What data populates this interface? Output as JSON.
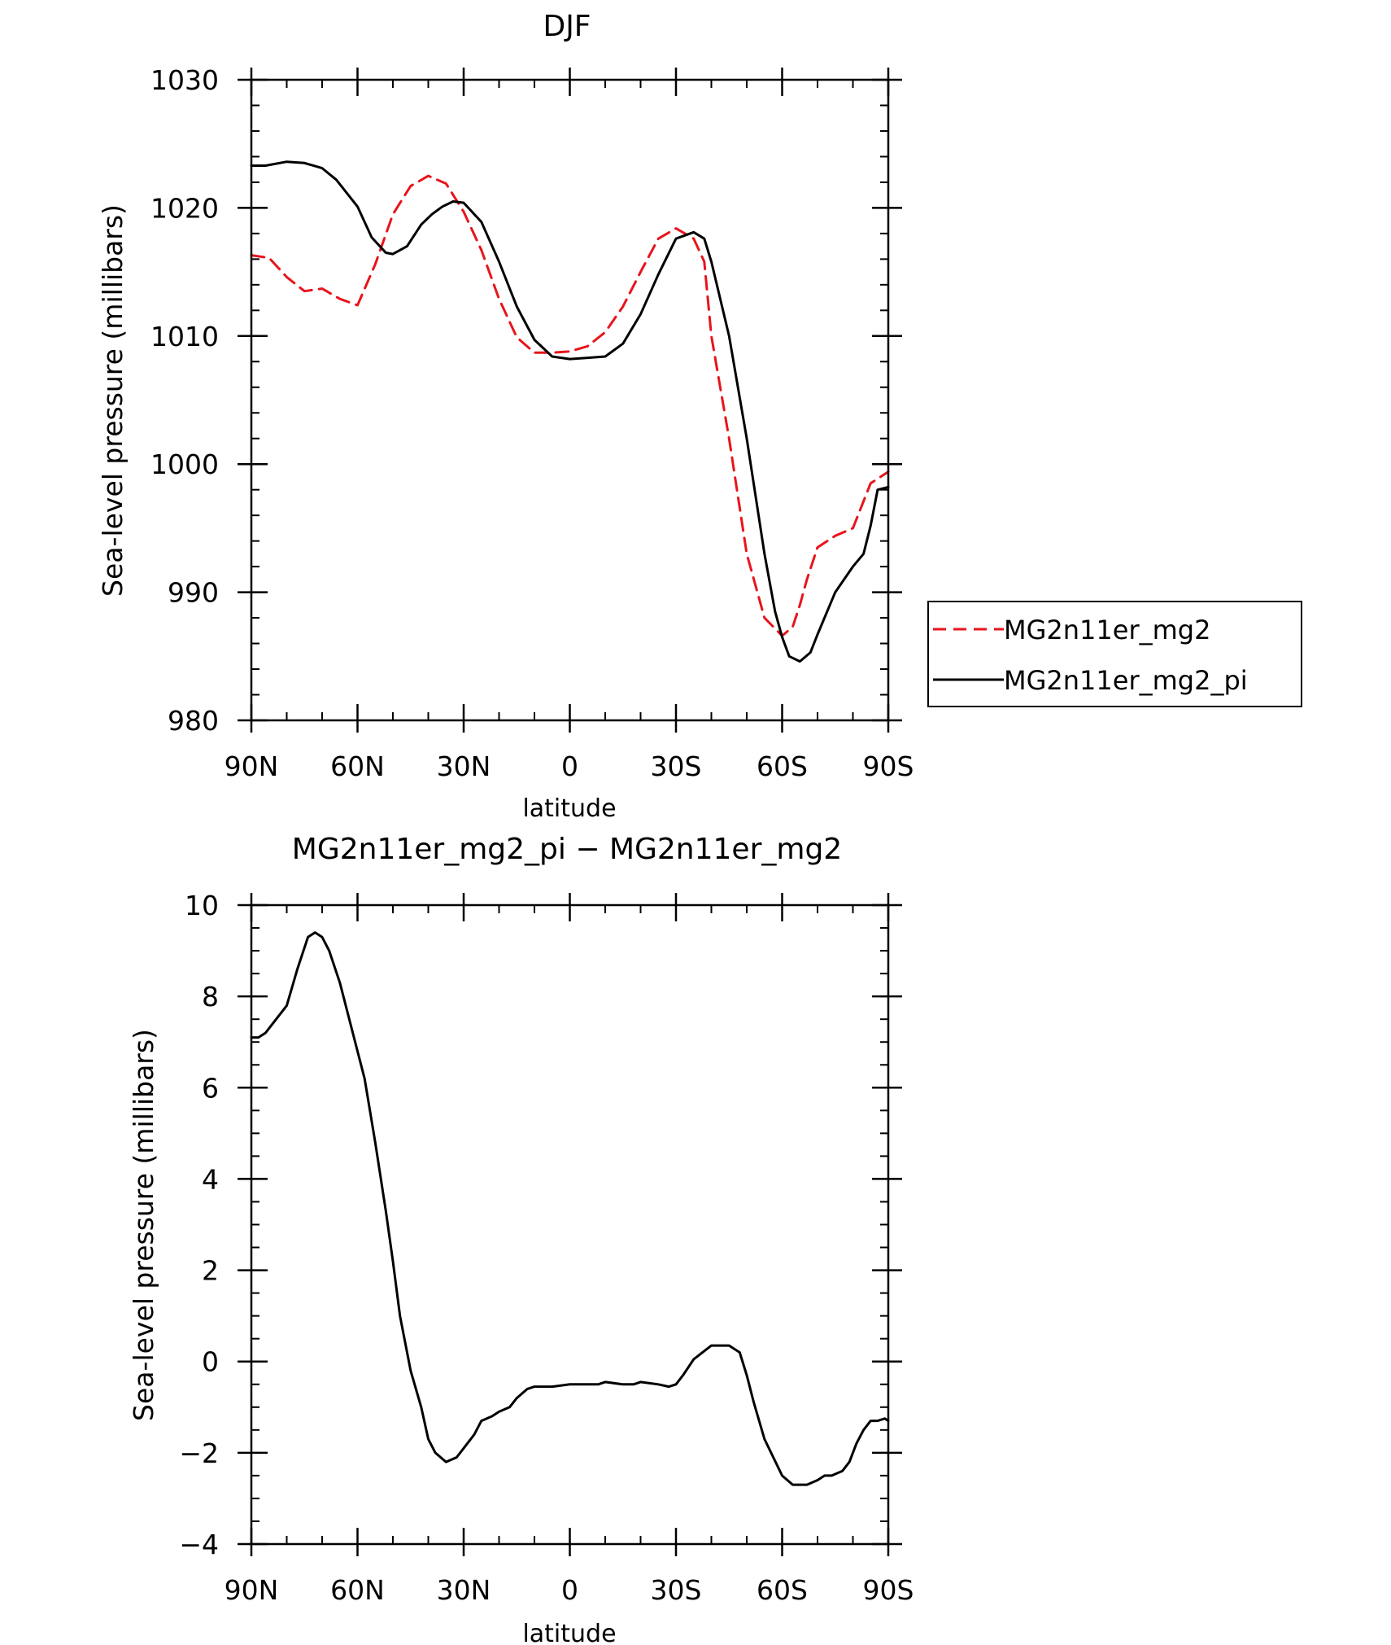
{
  "chart_data": [
    {
      "type": "line",
      "title": "DJF",
      "xlabel": "latitude",
      "ylabel": "Sea-level pressure (millibars)",
      "xlim": [
        90,
        -90
      ],
      "ylim": [
        980,
        1030
      ],
      "x_ticks": [
        {
          "value": 90,
          "label": "90N"
        },
        {
          "value": 60,
          "label": "60N"
        },
        {
          "value": 30,
          "label": "30N"
        },
        {
          "value": 0,
          "label": "0"
        },
        {
          "value": -30,
          "label": "30S"
        },
        {
          "value": -60,
          "label": "60S"
        },
        {
          "value": -90,
          "label": "90S"
        }
      ],
      "y_ticks": [
        {
          "value": 980,
          "label": "980"
        },
        {
          "value": 990,
          "label": "990"
        },
        {
          "value": 1000,
          "label": "1000"
        },
        {
          "value": 1010,
          "label": "1010"
        },
        {
          "value": 1020,
          "label": "1020"
        },
        {
          "value": 1030,
          "label": "1030"
        }
      ],
      "legend": "right",
      "series": [
        {
          "name": "MG2n11er_mg2",
          "color": "#e8141c",
          "dash": "dashed",
          "x": [
            90,
            85,
            80,
            75,
            70,
            65,
            60,
            55,
            50,
            45,
            40,
            35,
            30,
            25,
            20,
            15,
            10,
            5,
            0,
            -5,
            -10,
            -15,
            -20,
            -25,
            -30,
            -35,
            -38,
            -40,
            -45,
            -50,
            -55,
            -60,
            -63,
            -65,
            -67,
            -70,
            -75,
            -80,
            -85,
            -90
          ],
          "y": [
            1016.3,
            1016.1,
            1014.6,
            1013.5,
            1013.7,
            1012.9,
            1012.4,
            1015.6,
            1019.5,
            1021.7,
            1022.5,
            1021.9,
            1019.7,
            1016.7,
            1012.9,
            1009.9,
            1008.7,
            1008.7,
            1008.8,
            1009.2,
            1010.3,
            1012.3,
            1015.0,
            1017.6,
            1018.4,
            1017.6,
            1015.8,
            1010.0,
            1002.0,
            993.0,
            988.0,
            986.6,
            987.3,
            989.0,
            991.0,
            993.5,
            994.4,
            995.0,
            998.5,
            999.4
          ]
        },
        {
          "name": "MG2n11er_mg2_pi",
          "color": "#000000",
          "dash": "solid",
          "x": [
            90,
            86,
            80,
            75,
            70,
            66,
            60,
            56,
            52,
            50,
            46,
            42,
            39,
            36,
            33,
            30,
            25,
            20,
            15,
            10,
            5,
            0,
            -5,
            -10,
            -15,
            -20,
            -25,
            -30,
            -35,
            -38,
            -40,
            -45,
            -50,
            -55,
            -58,
            -60,
            -62,
            -65,
            -68,
            -70,
            -75,
            -80,
            -83,
            -85,
            -87,
            -90
          ],
          "y": [
            1023.3,
            1023.3,
            1023.6,
            1023.5,
            1023.1,
            1022.2,
            1020.1,
            1017.7,
            1016.5,
            1016.4,
            1017.0,
            1018.7,
            1019.5,
            1020.1,
            1020.5,
            1020.4,
            1018.9,
            1015.8,
            1012.3,
            1009.7,
            1008.4,
            1008.2,
            1008.3,
            1008.4,
            1009.4,
            1011.7,
            1014.8,
            1017.6,
            1018.1,
            1017.6,
            1015.8,
            1010.0,
            1002.0,
            993.0,
            988.5,
            986.5,
            985.0,
            984.6,
            985.3,
            986.7,
            990.0,
            992.0,
            993.0,
            995.2,
            998.0,
            998.2
          ]
        }
      ]
    },
    {
      "type": "line",
      "title": "MG2n11er_mg2_pi − MG2n11er_mg2",
      "xlabel": "latitude",
      "ylabel": "Sea-level pressure (millibars)",
      "xlim": [
        90,
        -90
      ],
      "ylim": [
        -4,
        10
      ],
      "x_ticks": [
        {
          "value": 90,
          "label": "90N"
        },
        {
          "value": 60,
          "label": "60N"
        },
        {
          "value": 30,
          "label": "30N"
        },
        {
          "value": 0,
          "label": "0"
        },
        {
          "value": -30,
          "label": "30S"
        },
        {
          "value": -60,
          "label": "60S"
        },
        {
          "value": -90,
          "label": "90S"
        }
      ],
      "y_ticks": [
        {
          "value": -4,
          "label": "−4"
        },
        {
          "value": -2,
          "label": "−2"
        },
        {
          "value": 0,
          "label": "0"
        },
        {
          "value": 2,
          "label": "2"
        },
        {
          "value": 4,
          "label": "4"
        },
        {
          "value": 6,
          "label": "6"
        },
        {
          "value": 8,
          "label": "8"
        },
        {
          "value": 10,
          "label": "10"
        }
      ],
      "series": [
        {
          "color": "#000000",
          "dash": "solid",
          "x": [
            90,
            88,
            86,
            84,
            80,
            77,
            74,
            72,
            70,
            68,
            65,
            62,
            58,
            55,
            52,
            50,
            48,
            45,
            42,
            40,
            38,
            35,
            32,
            30,
            27,
            25,
            22,
            20,
            17,
            15,
            12,
            10,
            5,
            0,
            -5,
            -8,
            -10,
            -15,
            -18,
            -20,
            -25,
            -28,
            -30,
            -32,
            -35,
            -40,
            -45,
            -48,
            -50,
            -52,
            -55,
            -60,
            -63,
            -67,
            -70,
            -72,
            -74,
            -77,
            -79,
            -81,
            -83,
            -85,
            -87,
            -89,
            -90
          ],
          "y": [
            7.1,
            7.1,
            7.2,
            7.4,
            7.8,
            8.6,
            9.3,
            9.4,
            9.3,
            9.0,
            8.3,
            7.4,
            6.2,
            4.8,
            3.3,
            2.2,
            1.0,
            -0.2,
            -1.0,
            -1.7,
            -2.0,
            -2.2,
            -2.1,
            -1.9,
            -1.6,
            -1.3,
            -1.2,
            -1.1,
            -1.0,
            -0.8,
            -0.6,
            -0.55,
            -0.55,
            -0.5,
            -0.5,
            -0.5,
            -0.45,
            -0.5,
            -0.5,
            -0.45,
            -0.5,
            -0.55,
            -0.5,
            -0.3,
            0.05,
            0.35,
            0.35,
            0.2,
            -0.3,
            -0.9,
            -1.7,
            -2.5,
            -2.7,
            -2.7,
            -2.6,
            -2.5,
            -2.5,
            -2.4,
            -2.2,
            -1.8,
            -1.5,
            -1.3,
            -1.3,
            -1.25,
            -1.3
          ]
        }
      ]
    }
  ]
}
